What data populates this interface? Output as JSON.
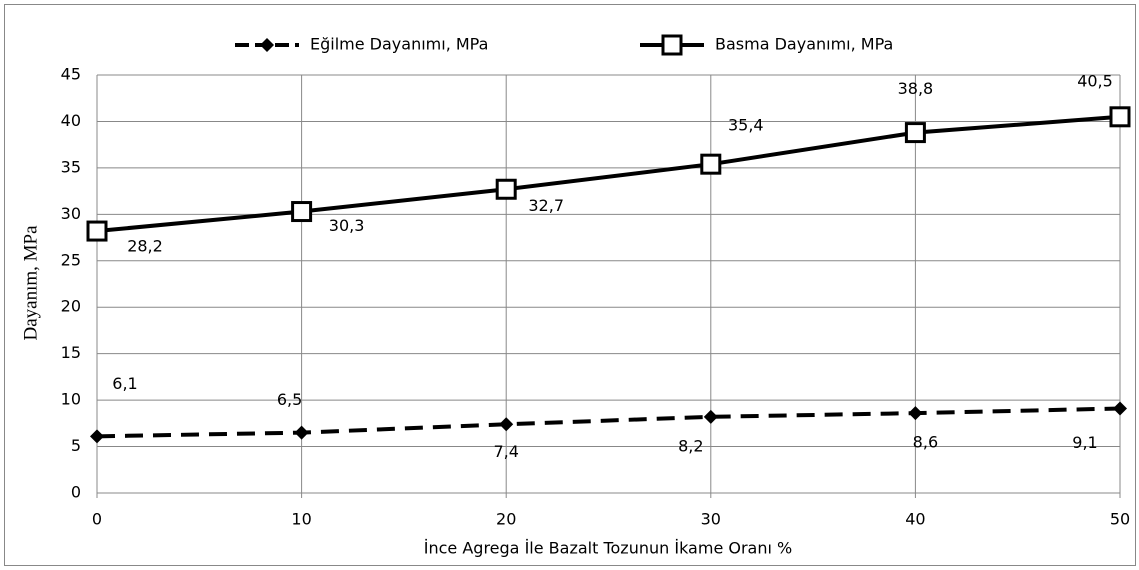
{
  "chart_data": {
    "type": "line",
    "x_label": "İnce Agrega İle Bazalt Tozunun İkame Oranı %",
    "y_label": "Dayanım,  MPa",
    "x": [
      0,
      10,
      20,
      30,
      40,
      50
    ],
    "xlim": [
      0,
      50
    ],
    "xticks": [
      0,
      10,
      20,
      30,
      40,
      50
    ],
    "ylim": [
      0,
      45
    ],
    "yticks": [
      0,
      5,
      10,
      15,
      20,
      25,
      30,
      35,
      40,
      45
    ],
    "grid": true,
    "legend": "top",
    "series": [
      {
        "name": "Eğilme Dayanımı, MPa",
        "color": "#000000",
        "dash": true,
        "marker": "diamond",
        "values": [
          6.1,
          6.5,
          7.4,
          8.2,
          8.6,
          9.1
        ],
        "value_labels": [
          "6,1",
          "6,5",
          "7,4",
          "8,2",
          "8,6",
          "9,1"
        ]
      },
      {
        "name": "Basma Dayanımı, MPa",
        "color": "#000000",
        "dash": false,
        "marker": "square",
        "values": [
          28.2,
          30.3,
          32.7,
          35.4,
          38.8,
          40.5
        ],
        "value_labels": [
          "28,2",
          "30,3",
          "32,7",
          "35,4",
          "38,8",
          "40,5"
        ]
      }
    ]
  }
}
